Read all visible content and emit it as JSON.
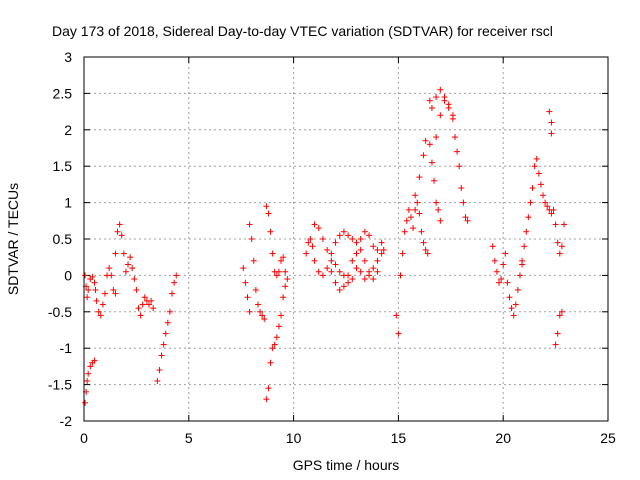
{
  "chart_data": {
    "type": "scatter",
    "title": "Day 173 of 2018, Sidereal Day-to-day VTEC variation (SDTVAR) for receiver rscl",
    "xlabel": "GPS time / hours",
    "ylabel": "SDTVAR / TECUs",
    "xlim": [
      0,
      25
    ],
    "ylim": [
      -2,
      3
    ],
    "xticks": [
      "0",
      "5",
      "10",
      "15",
      "20",
      "25"
    ],
    "yticks": [
      "-2",
      "-1.5",
      "-1",
      "-0.5",
      "0",
      "0.5",
      "1",
      "1.5",
      "2",
      "2.5",
      "3"
    ],
    "grid": true,
    "marker": "+",
    "color": "#ff0000",
    "series": [
      {
        "name": "SDTVAR",
        "tracks": [
          [
            [
              0.05,
              -1.75
            ],
            [
              0.1,
              -1.6
            ],
            [
              0.15,
              -1.45
            ],
            [
              0.2,
              -1.35
            ],
            [
              0.3,
              -1.25
            ],
            [
              0.4,
              -1.2
            ],
            [
              0.5,
              -1.17
            ]
          ],
          [
            [
              0.05,
              0.0
            ],
            [
              0.1,
              -0.15
            ],
            [
              0.15,
              -0.3
            ],
            [
              0.2,
              -0.2
            ],
            [
              0.3,
              -0.05
            ],
            [
              0.4,
              -0.02
            ],
            [
              0.5,
              -0.1
            ],
            [
              0.55,
              -0.2
            ],
            [
              0.6,
              -0.35
            ],
            [
              0.7,
              -0.5
            ],
            [
              0.8,
              -0.55
            ],
            [
              0.9,
              -0.4
            ],
            [
              1.0,
              -0.25
            ],
            [
              1.1,
              0.0
            ],
            [
              1.2,
              0.1
            ],
            [
              1.3,
              0.0
            ],
            [
              1.4,
              -0.2
            ],
            [
              1.5,
              -0.25
            ]
          ],
          [
            [
              1.5,
              0.3
            ],
            [
              1.6,
              0.6
            ],
            [
              1.7,
              0.7
            ],
            [
              1.8,
              0.55
            ],
            [
              1.9,
              0.3
            ],
            [
              2.0,
              0.05
            ],
            [
              2.1,
              0.15
            ],
            [
              2.2,
              0.25
            ],
            [
              2.3,
              0.1
            ],
            [
              2.4,
              -0.05
            ]
          ],
          [
            [
              2.5,
              -0.2
            ],
            [
              2.6,
              -0.45
            ],
            [
              2.7,
              -0.55
            ],
            [
              2.8,
              -0.4
            ],
            [
              2.9,
              -0.3
            ],
            [
              3.0,
              -0.35
            ],
            [
              3.1,
              -0.4
            ],
            [
              3.2,
              -0.35
            ],
            [
              3.3,
              -0.45
            ]
          ],
          [
            [
              3.5,
              -1.45
            ],
            [
              3.6,
              -1.3
            ],
            [
              3.7,
              -1.1
            ],
            [
              3.8,
              -0.95
            ],
            [
              3.9,
              -0.8
            ],
            [
              4.0,
              -0.65
            ],
            [
              4.1,
              -0.5
            ]
          ],
          [
            [
              4.2,
              -0.25
            ],
            [
              4.3,
              -0.1
            ],
            [
              4.4,
              0.0
            ]
          ],
          [
            [
              7.6,
              0.1
            ],
            [
              7.7,
              -0.1
            ],
            [
              7.8,
              -0.3
            ],
            [
              7.9,
              -0.5
            ]
          ],
          [
            [
              7.9,
              0.7
            ],
            [
              8.0,
              0.5
            ],
            [
              8.1,
              0.2
            ],
            [
              8.2,
              -0.2
            ],
            [
              8.3,
              -0.4
            ],
            [
              8.4,
              -0.5
            ],
            [
              8.5,
              -0.55
            ],
            [
              8.6,
              -0.6
            ]
          ],
          [
            [
              8.7,
              0.95
            ],
            [
              8.8,
              0.85
            ],
            [
              8.9,
              0.6
            ],
            [
              9.0,
              0.3
            ],
            [
              9.1,
              0.05
            ],
            [
              9.2,
              0.0
            ],
            [
              9.3,
              0.05
            ],
            [
              9.4,
              0.2
            ],
            [
              9.5,
              0.25
            ],
            [
              9.6,
              0.05
            ]
          ],
          [
            [
              8.7,
              -1.7
            ],
            [
              8.8,
              -1.55
            ],
            [
              8.9,
              -1.2
            ],
            [
              9.0,
              -1.0
            ],
            [
              9.1,
              -0.95
            ],
            [
              9.2,
              -0.85
            ],
            [
              9.3,
              -0.7
            ],
            [
              9.4,
              -0.55
            ],
            [
              9.5,
              -0.3
            ],
            [
              9.6,
              -0.15
            ],
            [
              9.7,
              -0.05
            ]
          ],
          [
            [
              10.6,
              0.3
            ],
            [
              10.7,
              0.45
            ],
            [
              10.8,
              0.5
            ],
            [
              10.9,
              0.4
            ],
            [
              11.0,
              0.2
            ],
            [
              11.2,
              0.05
            ],
            [
              11.4,
              0.0
            ],
            [
              11.6,
              0.1
            ],
            [
              11.8,
              0.3
            ],
            [
              12.0,
              0.45
            ],
            [
              12.2,
              0.55
            ],
            [
              12.4,
              0.6
            ],
            [
              12.6,
              0.55
            ],
            [
              12.8,
              0.5
            ],
            [
              13.0,
              0.45
            ],
            [
              13.2,
              0.5
            ],
            [
              13.4,
              0.6
            ],
            [
              13.6,
              0.55
            ],
            [
              13.8,
              0.4
            ],
            [
              14.0,
              0.35
            ],
            [
              14.2,
              0.45
            ],
            [
              14.3,
              0.35
            ]
          ],
          [
            [
              11.0,
              0.7
            ],
            [
              11.2,
              0.65
            ],
            [
              11.4,
              0.5
            ],
            [
              11.6,
              0.35
            ],
            [
              11.8,
              0.2
            ],
            [
              12.0,
              0.15
            ],
            [
              12.2,
              0.05
            ],
            [
              12.4,
              0.0
            ],
            [
              12.6,
              -0.1
            ],
            [
              12.8,
              -0.05
            ],
            [
              13.0,
              0.1
            ],
            [
              13.2,
              0.05
            ],
            [
              13.4,
              -0.05
            ],
            [
              13.6,
              0.0
            ],
            [
              13.8,
              0.1
            ],
            [
              14.0,
              0.2
            ],
            [
              14.2,
              0.3
            ]
          ],
          [
            [
              11.8,
              0.05
            ],
            [
              12.0,
              -0.1
            ],
            [
              12.2,
              -0.2
            ],
            [
              12.4,
              -0.15
            ],
            [
              12.6,
              0.0
            ],
            [
              12.8,
              0.2
            ],
            [
              13.0,
              0.3
            ],
            [
              13.2,
              0.35
            ],
            [
              13.4,
              0.2
            ],
            [
              13.6,
              0.05
            ],
            [
              13.8,
              -0.05
            ],
            [
              14.0,
              0.05
            ]
          ],
          [
            [
              14.9,
              -0.55
            ],
            [
              15.0,
              -0.8
            ]
          ],
          [
            [
              15.1,
              0.0
            ],
            [
              15.2,
              0.3
            ],
            [
              15.3,
              0.6
            ],
            [
              15.4,
              0.75
            ],
            [
              15.5,
              0.9
            ],
            [
              15.6,
              0.8
            ],
            [
              15.7,
              0.65
            ],
            [
              15.8,
              0.9
            ],
            [
              15.9,
              1.0
            ],
            [
              16.0,
              0.85
            ],
            [
              16.1,
              0.6
            ],
            [
              16.2,
              0.45
            ],
            [
              16.3,
              0.35
            ],
            [
              16.4,
              0.3
            ]
          ],
          [
            [
              15.8,
              1.1
            ],
            [
              16.0,
              1.35
            ],
            [
              16.2,
              1.65
            ],
            [
              16.3,
              1.85
            ],
            [
              16.5,
              1.8
            ],
            [
              16.6,
              1.55
            ],
            [
              16.7,
              1.3
            ],
            [
              16.8,
              1.0
            ],
            [
              16.9,
              0.9
            ],
            [
              17.0,
              0.75
            ]
          ],
          [
            [
              16.5,
              2.4
            ],
            [
              16.6,
              2.3
            ],
            [
              16.8,
              2.45
            ],
            [
              17.0,
              2.55
            ],
            [
              17.2,
              2.45
            ],
            [
              17.4,
              2.3
            ],
            [
              17.6,
              2.15
            ],
            [
              17.7,
              1.9
            ],
            [
              17.8,
              1.7
            ],
            [
              17.9,
              1.5
            ],
            [
              18.0,
              1.2
            ],
            [
              18.1,
              1.0
            ],
            [
              18.2,
              0.8
            ],
            [
              18.3,
              0.75
            ]
          ],
          [
            [
              16.8,
              1.9
            ],
            [
              17.0,
              2.2
            ],
            [
              17.2,
              2.4
            ],
            [
              17.4,
              2.35
            ],
            [
              17.6,
              2.2
            ]
          ],
          [
            [
              19.5,
              0.4
            ],
            [
              19.6,
              0.2
            ],
            [
              19.7,
              0.05
            ],
            [
              19.8,
              -0.1
            ],
            [
              19.9,
              -0.05
            ],
            [
              20.0,
              0.15
            ],
            [
              20.1,
              0.3
            ]
          ],
          [
            [
              20.2,
              -0.1
            ],
            [
              20.3,
              -0.3
            ],
            [
              20.4,
              -0.45
            ],
            [
              20.5,
              -0.55
            ],
            [
              20.6,
              -0.4
            ],
            [
              20.7,
              -0.2
            ],
            [
              20.8,
              0.0
            ],
            [
              20.9,
              0.15
            ]
          ],
          [
            [
              20.9,
              0.2
            ],
            [
              21.0,
              0.4
            ],
            [
              21.1,
              0.6
            ],
            [
              21.2,
              0.8
            ],
            [
              21.3,
              1.0
            ],
            [
              21.4,
              1.2
            ],
            [
              21.5,
              1.5
            ],
            [
              21.6,
              1.6
            ],
            [
              21.7,
              1.4
            ],
            [
              21.8,
              1.25
            ],
            [
              21.9,
              1.1
            ],
            [
              22.0,
              1.0
            ],
            [
              22.1,
              0.95
            ],
            [
              22.2,
              0.9
            ],
            [
              22.3,
              0.85
            ]
          ],
          [
            [
              22.2,
              2.25
            ],
            [
              22.3,
              2.1
            ],
            [
              22.3,
              1.95
            ]
          ],
          [
            [
              22.4,
              0.9
            ],
            [
              22.5,
              0.7
            ],
            [
              22.6,
              0.45
            ],
            [
              22.7,
              0.3
            ],
            [
              22.8,
              0.4
            ],
            [
              22.9,
              0.7
            ]
          ],
          [
            [
              22.5,
              -0.95
            ],
            [
              22.6,
              -0.8
            ],
            [
              22.7,
              -0.55
            ],
            [
              22.8,
              -0.5
            ]
          ]
        ]
      }
    ]
  }
}
